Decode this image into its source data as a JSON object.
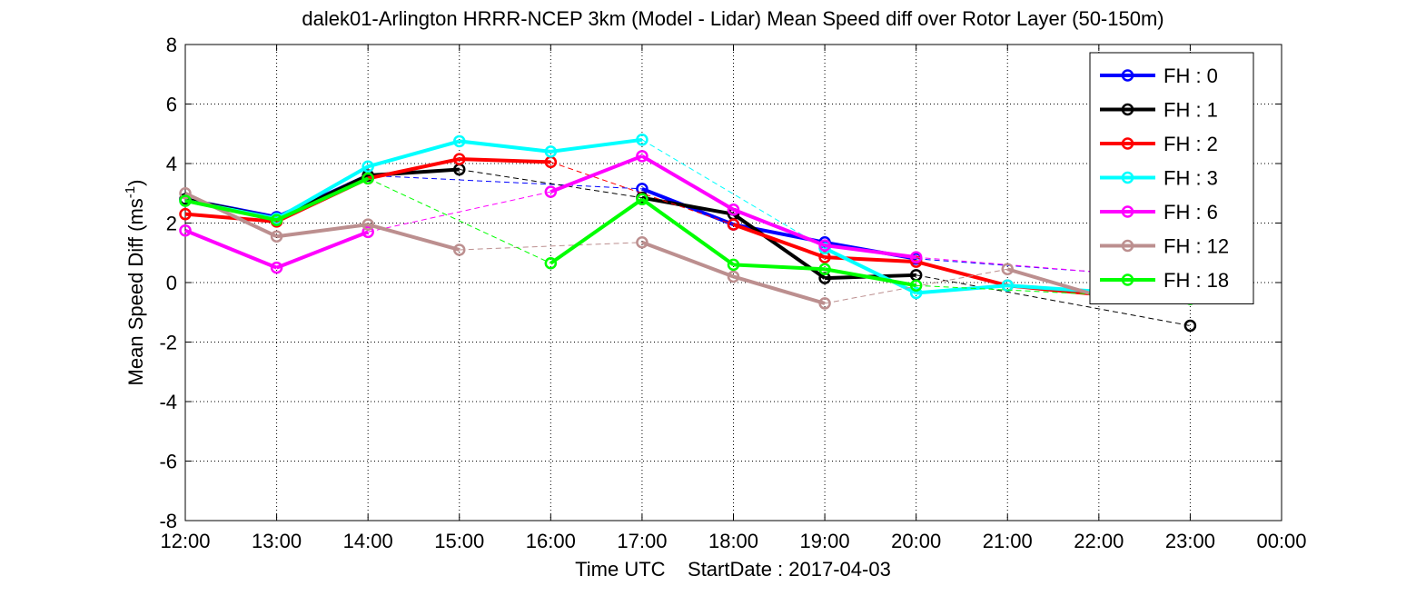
{
  "chart_data": {
    "type": "line",
    "title": "dalek01-Arlington HRRR-NCEP 3km (Model - Lidar) Mean Speed diff over Rotor Layer (50-150m)",
    "xlabel": "Time UTC    StartDate : 2017-04-03",
    "ylabel_main": "Mean Speed Diff (ms",
    "ylabel_sup": "-1",
    "ylabel_close": ")",
    "xlim": [
      12,
      24
    ],
    "ylim": [
      -8,
      8
    ],
    "x_ticks": [
      12,
      13,
      14,
      15,
      16,
      17,
      18,
      19,
      20,
      21,
      22,
      23,
      24
    ],
    "x_tick_labels": [
      "12:00",
      "13:00",
      "14:00",
      "15:00",
      "16:00",
      "17:00",
      "18:00",
      "19:00",
      "20:00",
      "21:00",
      "22:00",
      "23:00",
      "00:00"
    ],
    "y_ticks": [
      8,
      6,
      4,
      2,
      0,
      -2,
      -4,
      -6,
      -8
    ],
    "y_tick_labels": [
      "8",
      "6",
      "4",
      "2",
      "0",
      "-2",
      "-4",
      "-6",
      "-8"
    ],
    "grid": true,
    "legend_position": "top-right",
    "series": [
      {
        "name": "FH : 0",
        "color": "#0000ff",
        "points": [
          [
            12,
            2.8
          ],
          [
            13,
            2.2
          ],
          [
            14,
            3.6
          ],
          [
            17,
            3.15
          ],
          [
            18,
            1.95
          ],
          [
            19,
            1.35
          ],
          [
            20,
            0.8
          ],
          [
            22,
            0.35
          ]
        ]
      },
      {
        "name": "FH : 1",
        "color": "#000000",
        "points": [
          [
            12,
            2.8
          ],
          [
            13,
            2.15
          ],
          [
            14,
            3.6
          ],
          [
            15,
            3.8
          ],
          [
            17,
            2.85
          ],
          [
            18,
            2.3
          ],
          [
            19,
            0.15
          ],
          [
            20,
            0.25
          ],
          [
            23,
            -1.45
          ]
        ]
      },
      {
        "name": "FH : 2",
        "color": "#ff0000",
        "points": [
          [
            12,
            2.3
          ],
          [
            13,
            2.05
          ],
          [
            14,
            3.5
          ],
          [
            15,
            4.15
          ],
          [
            16,
            4.05
          ],
          [
            18,
            1.95
          ],
          [
            19,
            0.85
          ],
          [
            20,
            0.7
          ],
          [
            21,
            -0.1
          ],
          [
            22,
            -0.4
          ]
        ]
      },
      {
        "name": "FH : 3",
        "color": "#00ffff",
        "points": [
          [
            12,
            2.75
          ],
          [
            13,
            2.15
          ],
          [
            14,
            3.9
          ],
          [
            15,
            4.75
          ],
          [
            16,
            4.4
          ],
          [
            17,
            4.8
          ],
          [
            19,
            1.15
          ],
          [
            20,
            -0.35
          ],
          [
            21,
            -0.1
          ],
          [
            22,
            -0.3
          ]
        ]
      },
      {
        "name": "FH : 6",
        "color": "#ff00ff",
        "points": [
          [
            12,
            1.75
          ],
          [
            13,
            0.5
          ],
          [
            14,
            1.7
          ],
          [
            16,
            3.05
          ],
          [
            17,
            4.25
          ],
          [
            18,
            2.45
          ],
          [
            19,
            1.25
          ],
          [
            20,
            0.85
          ],
          [
            22,
            0.35
          ]
        ]
      },
      {
        "name": "FH : 12",
        "color": "#bc8f8f",
        "points": [
          [
            12,
            3.0
          ],
          [
            13,
            1.55
          ],
          [
            14,
            1.95
          ],
          [
            15,
            1.1
          ],
          [
            17,
            1.35
          ],
          [
            18,
            0.2
          ],
          [
            19,
            -0.7
          ],
          [
            21,
            0.45
          ],
          [
            22,
            -0.45
          ]
        ]
      },
      {
        "name": "FH : 18",
        "color": "#00ff00",
        "points": [
          [
            12,
            2.75
          ],
          [
            13,
            2.1
          ],
          [
            14,
            3.5
          ],
          [
            16,
            0.65
          ],
          [
            17,
            2.8
          ],
          [
            18,
            0.6
          ],
          [
            19,
            0.45
          ],
          [
            20,
            -0.1
          ],
          [
            23,
            -0.55
          ]
        ]
      }
    ]
  }
}
